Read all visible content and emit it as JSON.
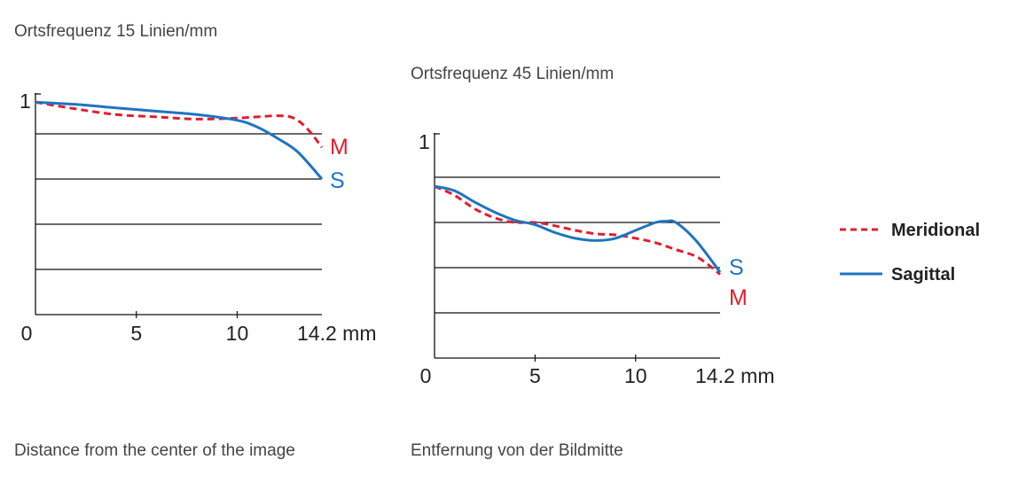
{
  "captions": {
    "chart1_title": "Ortsfrequenz 15 Linien/mm",
    "chart2_title": "Ortsfrequenz 45 Linien/mm",
    "bottom_left": "Distance from the center of the image",
    "bottom_right": "Entfernung von der Bildmitte"
  },
  "colors": {
    "meridional": "#e01e2f",
    "sagittal": "#1f74c0",
    "grid": "#111111"
  },
  "legend": {
    "items": [
      {
        "label": "Meridional",
        "style": "dashed",
        "color": "#e01e2f"
      },
      {
        "label": "Sagittal",
        "style": "solid",
        "color": "#1f74c0"
      }
    ]
  },
  "chart_data": [
    {
      "type": "line",
      "title": "Ortsfrequenz 15 Linien/mm",
      "xlabel": "",
      "ylabel": "",
      "xlim": [
        0,
        14.2
      ],
      "ylim": [
        0,
        1
      ],
      "x_ticks": [
        "0",
        "5",
        "10",
        "14.2 mm"
      ],
      "x_tick_values": [
        0,
        5,
        10,
        14.2
      ],
      "y_ticks": [
        "1"
      ],
      "y_tick_values": [
        1
      ],
      "gridlines_y": [
        0.2,
        0.4,
        0.6,
        0.8
      ],
      "series": [
        {
          "label": "M",
          "x": [
            0,
            2,
            4,
            6,
            8,
            10,
            11,
            12,
            12.8,
            13.5,
            14.2
          ],
          "y": [
            0.94,
            0.91,
            0.885,
            0.875,
            0.865,
            0.87,
            0.875,
            0.88,
            0.87,
            0.82,
            0.74
          ]
        },
        {
          "label": "S",
          "x": [
            0,
            2,
            4,
            6,
            8,
            10,
            11,
            12,
            13,
            14.2
          ],
          "y": [
            0.94,
            0.93,
            0.915,
            0.9,
            0.885,
            0.86,
            0.83,
            0.78,
            0.72,
            0.6
          ]
        }
      ]
    },
    {
      "type": "line",
      "title": "Ortsfrequenz 45 Linien/mm",
      "xlabel": "",
      "ylabel": "",
      "xlim": [
        0,
        14.2
      ],
      "ylim": [
        0,
        1
      ],
      "x_ticks": [
        "0",
        "5",
        "10",
        "14.2 mm"
      ],
      "x_tick_values": [
        0,
        5,
        10,
        14.2
      ],
      "y_ticks": [
        "1"
      ],
      "y_tick_values": [
        1
      ],
      "gridlines_y": [
        0.2,
        0.4,
        0.6,
        0.8
      ],
      "series": [
        {
          "label": "M",
          "x": [
            0,
            1,
            2,
            3,
            4,
            5,
            6,
            7,
            8,
            9,
            10,
            11,
            12,
            13,
            13.8,
            14.2
          ],
          "y": [
            0.76,
            0.72,
            0.66,
            0.62,
            0.6,
            0.6,
            0.585,
            0.565,
            0.55,
            0.545,
            0.53,
            0.51,
            0.48,
            0.45,
            0.4,
            0.37
          ]
        },
        {
          "label": "S",
          "x": [
            0,
            1,
            2,
            3,
            4,
            5,
            6,
            7,
            8,
            9,
            10,
            11,
            11.5,
            12,
            13,
            14.2
          ],
          "y": [
            0.76,
            0.74,
            0.69,
            0.645,
            0.61,
            0.59,
            0.555,
            0.53,
            0.52,
            0.53,
            0.565,
            0.6,
            0.605,
            0.6,
            0.52,
            0.38
          ]
        }
      ]
    }
  ]
}
